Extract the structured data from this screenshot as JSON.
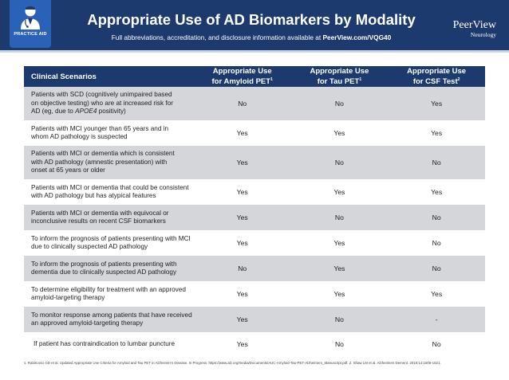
{
  "header": {
    "badge_label": "PRACTICE AID",
    "title": "Appropriate Use of AD Biomarkers by Modality",
    "subtitle_prefix": "Full abbreviations, accreditation, and disclosure information available at ",
    "subtitle_url": "PeerView.com/VQG40",
    "brand_name": "PeerView",
    "brand_sub": "Neurology",
    "badge_icon": "doctor-icon"
  },
  "table": {
    "col_scenarios": "Clinical Scenarios",
    "cols": [
      {
        "line1": "Appropriate Use",
        "line2": "for Amyloid PET",
        "sup": "1"
      },
      {
        "line1": "Appropriate Use",
        "line2": "for Tau PET",
        "sup": "1"
      },
      {
        "line1": "Appropriate Use",
        "line2": "for CSF Test",
        "sup": "2"
      }
    ],
    "rows": [
      {
        "l1": "Patients with SCD (cognitively unimpaired based",
        "l2": "on objective testing) who are at increased risk for",
        "l3a": "AD (eg, due to ",
        "l3b": "APOE4",
        "l3c": " positivity)",
        "amyloid": "No",
        "tau": "No",
        "csf": "Yes"
      },
      {
        "l1": "Patients with MCI younger than 65 years and in",
        "l2": "whom AD pathology is suspected",
        "amyloid": "Yes",
        "tau": "Yes",
        "csf": "Yes"
      },
      {
        "l1": "Patients with MCI or dementia which is consistent",
        "l2": "with AD pathology (amnestic presentation) with",
        "l3": "onset at 65 years or older",
        "amyloid": "Yes",
        "tau": "No",
        "csf": "No"
      },
      {
        "l1": "Patients with MCI or dementia that could be consistent",
        "l2": "with AD pathology but has atypical features",
        "amyloid": "Yes",
        "tau": "Yes",
        "csf": "Yes"
      },
      {
        "l1": "Patients with MCI or dementia with equivocal or",
        "l2": "inconclusive results on recent CSF biomarkers",
        "amyloid": "Yes",
        "tau": "No",
        "csf": "No"
      },
      {
        "l1": "To inform the prognosis of patients presenting with MCI",
        "l2": "due to clinically suspected AD pathology",
        "amyloid": "Yes",
        "tau": "Yes",
        "csf": "No"
      },
      {
        "l1": "To inform the prognosis of patients presenting with",
        "l2": "dementia due to clinically suspected AD pathology",
        "amyloid": "No",
        "tau": "Yes",
        "csf": "No"
      },
      {
        "l1": "To determine eligibility for treatment with an approved",
        "l2": "amyloid-targeting therapy",
        "amyloid": "Yes",
        "tau": "Yes",
        "csf": "Yes"
      },
      {
        "l1": "To monitor response among patients that have received",
        "l2": "an approved amyloid-targeting therapy",
        "amyloid": "Yes",
        "tau": "No",
        "csf": "-"
      },
      {
        "l1": "If patient has contraindication to lumbar puncture",
        "amyloid": "Yes",
        "tau": "No",
        "csf": "No"
      }
    ]
  },
  "footnote": "1. Rabinovici GD et al. Updated Appropriate Use Criteria for Amyloid and Tau PET in Alzheimer's Disease. In Progress. https://www.alz.org/media/Documents/AUC-Amyloid-Tau-PET-Alzheimers_Manuscript.pdf. 2. Shaw LM et al. Alzheimers Dement. 2018;14:1505-1521."
}
